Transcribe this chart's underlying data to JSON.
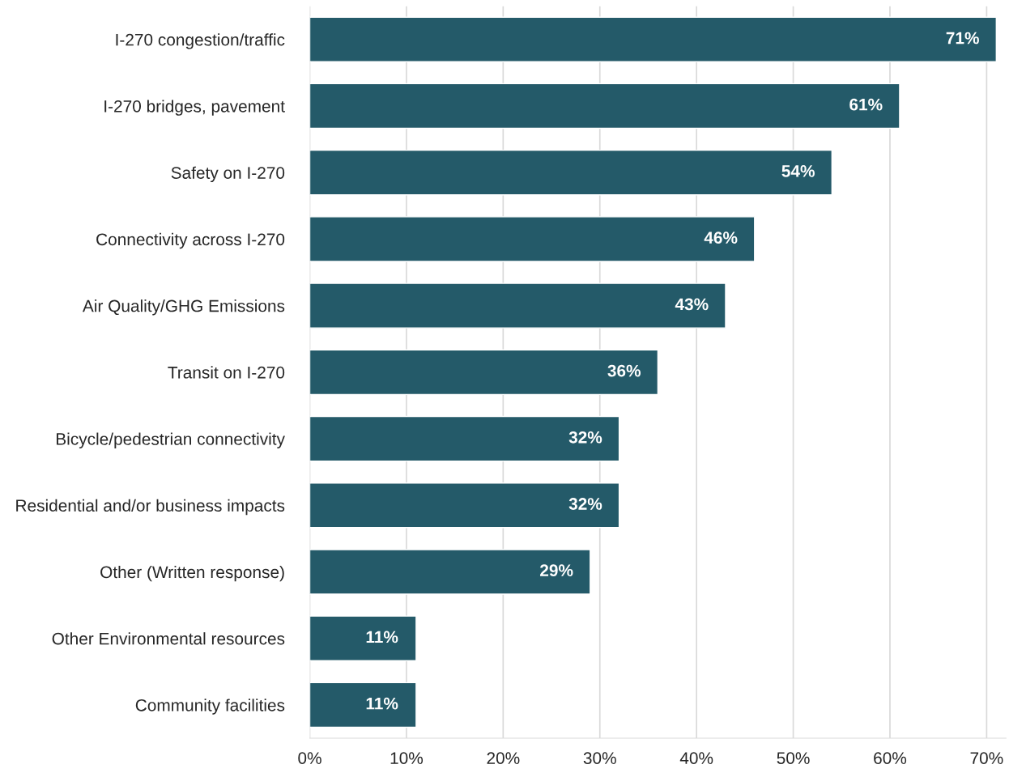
{
  "chart_data": {
    "type": "bar",
    "orientation": "horizontal",
    "categories": [
      "I-270 congestion/traffic",
      "I-270 bridges, pavement",
      "Safety on I-270",
      "Connectivity across I-270",
      "Air Quality/GHG Emissions",
      "Transit on I-270",
      "Bicycle/pedestrian connectivity",
      "Residential and/or business impacts",
      "Other (Written response)",
      "Other Environmental resources",
      "Community facilities"
    ],
    "values": [
      71,
      61,
      54,
      46,
      43,
      36,
      32,
      32,
      29,
      11,
      11
    ],
    "value_labels": [
      "71%",
      "61%",
      "54%",
      "46%",
      "43%",
      "36%",
      "32%",
      "32%",
      "29%",
      "11%",
      "11%"
    ],
    "color": "#245a69",
    "xlim": [
      0,
      72
    ],
    "xticks": [
      {
        "value": 0,
        "label": "0%"
      },
      {
        "value": 10,
        "label": "10%"
      },
      {
        "value": 20,
        "label": "20%"
      },
      {
        "value": 30,
        "label": "30%"
      },
      {
        "value": 40,
        "label": "40%"
      },
      {
        "value": 50,
        "label": "50%"
      },
      {
        "value": 60,
        "label": "60%"
      },
      {
        "value": 70,
        "label": "70%"
      }
    ],
    "grid": "x",
    "legend": false
  }
}
